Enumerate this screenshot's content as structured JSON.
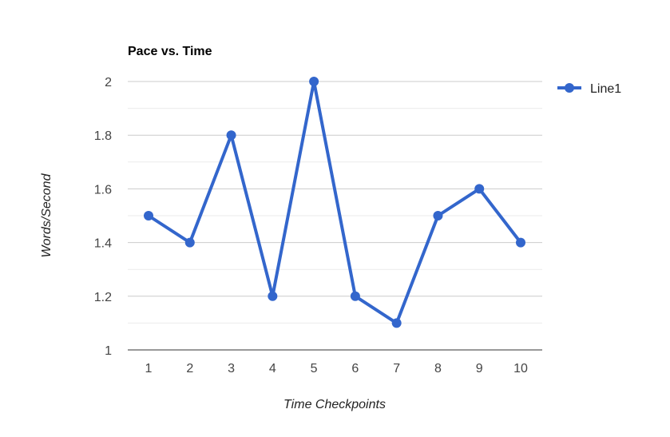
{
  "chart_data": {
    "type": "line",
    "title": "Pace vs. Time",
    "xlabel": "Time Checkpoints",
    "ylabel": "Words/Second",
    "categories": [
      "1",
      "2",
      "3",
      "4",
      "5",
      "6",
      "7",
      "8",
      "9",
      "10"
    ],
    "series": [
      {
        "name": "Line1",
        "values": [
          1.5,
          1.4,
          1.8,
          1.2,
          2.0,
          1.2,
          1.1,
          1.5,
          1.6,
          1.4
        ]
      }
    ],
    "ylim": [
      1,
      2
    ],
    "yticks": [
      "1",
      "1.2",
      "1.4",
      "1.6",
      "1.8",
      "2"
    ],
    "grid": true,
    "minor_grid": true,
    "legend_position": "right",
    "colors": {
      "series": "#3366cc",
      "grid_major": "#cccccc",
      "grid_minor": "#ebebeb",
      "baseline": "#333333"
    }
  }
}
